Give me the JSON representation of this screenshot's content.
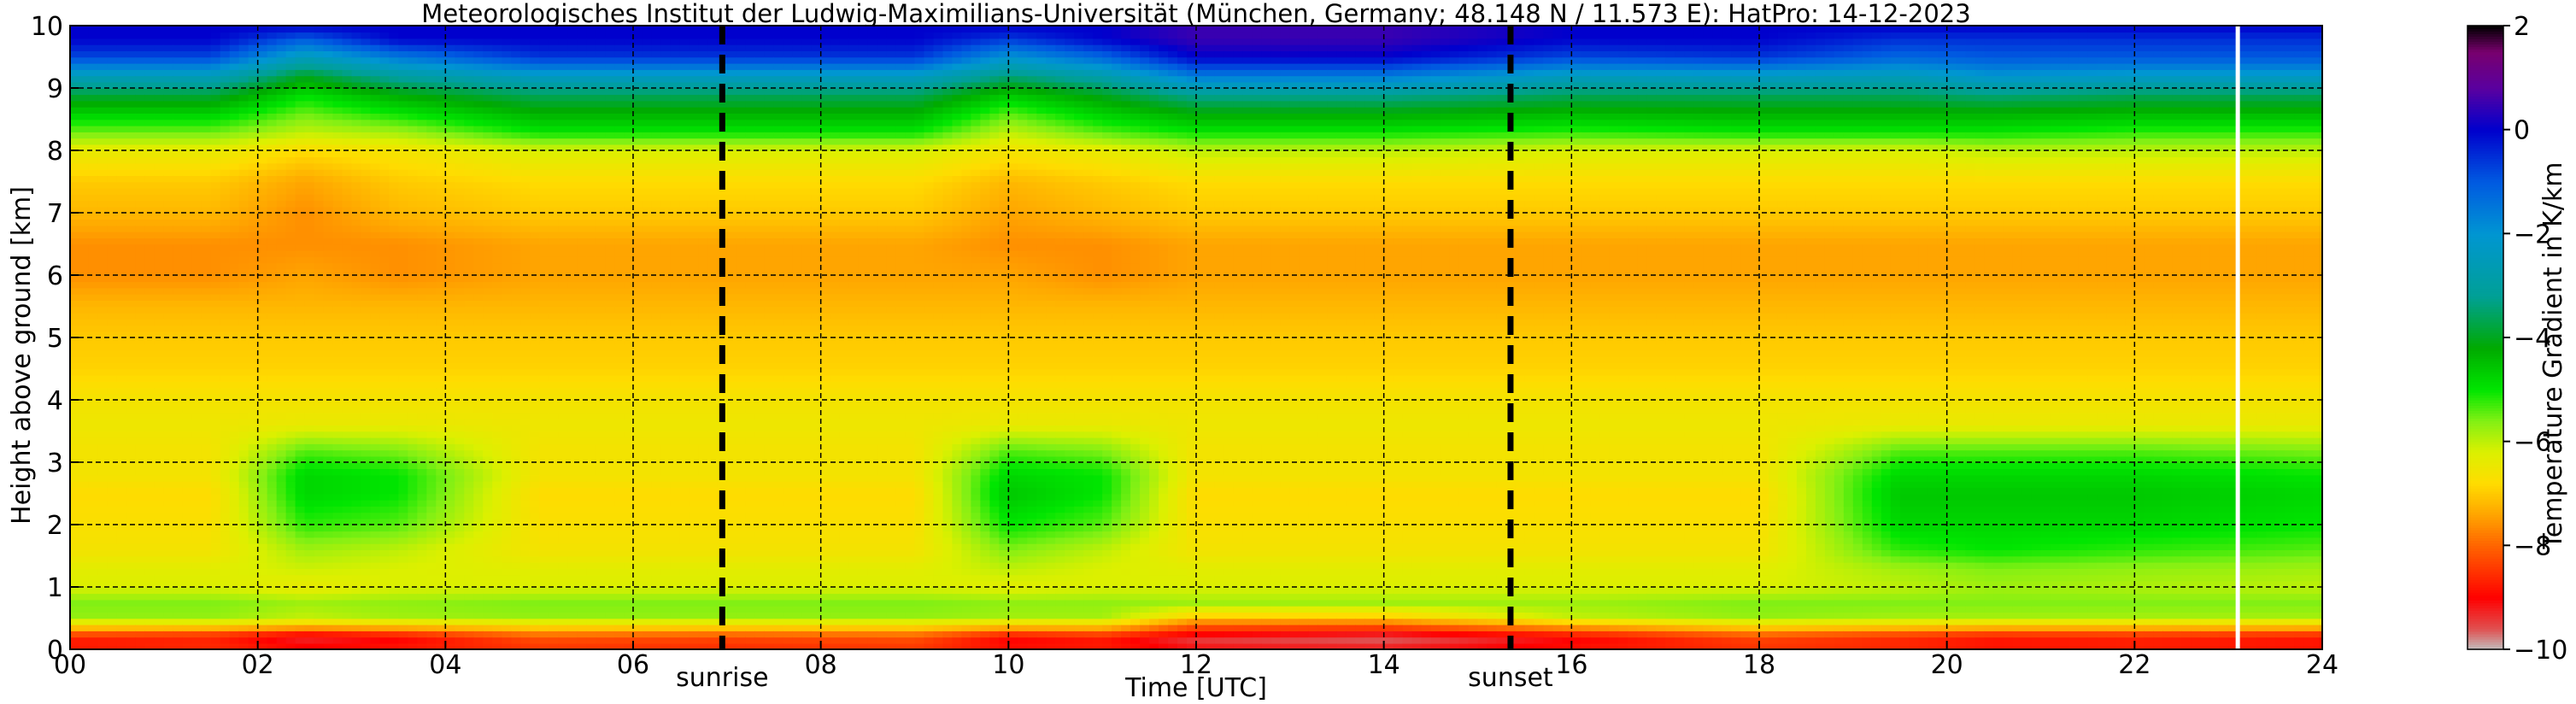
{
  "chart_data": {
    "type": "heatmap",
    "title": "Meteorologisches Institut der Ludwig-Maximilians-Universität (München, Germany; 48.148 N / 11.573 E):    HatPro: 14-12-2023",
    "xlabel": "Time [UTC]",
    "ylabel": "Height above ground [km]",
    "xlim": [
      0,
      24
    ],
    "ylim": [
      0,
      10
    ],
    "x_ticks": [
      0,
      2,
      4,
      6,
      8,
      10,
      12,
      14,
      16,
      18,
      20,
      22,
      24
    ],
    "x_tick_labels": [
      "00",
      "02",
      "04",
      "06",
      "08",
      "10",
      "12",
      "14",
      "16",
      "18",
      "20",
      "22",
      "24"
    ],
    "y_ticks": [
      0,
      1,
      2,
      3,
      4,
      5,
      6,
      7,
      8,
      9,
      10
    ],
    "y_tick_labels": [
      "0",
      "1",
      "2",
      "3",
      "4",
      "5",
      "6",
      "7",
      "8",
      "9",
      "10"
    ],
    "grid": true,
    "colorbar": {
      "label": "Temperature Gradient in K/km",
      "range": [
        -10,
        2
      ],
      "ticks": [
        -10,
        -8,
        -6,
        -4,
        -2,
        0,
        2
      ],
      "tick_labels": [
        "−10",
        "−8",
        "−6",
        "−4",
        "−2",
        "0",
        "2"
      ]
    },
    "markers": [
      {
        "label": "sunrise",
        "time": 6.95
      },
      {
        "label": "sunset",
        "time": 15.35
      }
    ],
    "gap_line_time": 23.1,
    "profile_heights_km": [
      0.0,
      0.1,
      0.25,
      0.4,
      0.55,
      0.75,
      1.0,
      1.3,
      1.6,
      2.0,
      2.5,
      2.8,
      3.2,
      3.6,
      4.0,
      4.5,
      5.0,
      5.5,
      6.0,
      6.5,
      7.0,
      7.5,
      8.0,
      8.3,
      8.6,
      8.9,
      9.2,
      9.5,
      9.8,
      10.0
    ],
    "profile_times_h": [
      0,
      1.5,
      2.5,
      3.5,
      5,
      7,
      9,
      10,
      11,
      12,
      14,
      16,
      18,
      19.5,
      20.5,
      22,
      24
    ],
    "values": [
      [
        -8.5,
        -9.0,
        -8.2,
        -6.6,
        -5.7,
        -5.6,
        -6.2,
        -6.3,
        -6.6,
        -6.7,
        -6.8,
        -6.6,
        -6.6,
        -6.5,
        -6.6,
        -6.9,
        -7.0,
        -7.2,
        -7.6,
        -7.6,
        -7.2,
        -7.0,
        -6.4,
        -5.5,
        -4.7,
        -3.8,
        -2.5,
        -0.8,
        0.0,
        0.0
      ],
      [
        -8.4,
        -8.8,
        -8.3,
        -6.6,
        -5.7,
        -5.6,
        -6.2,
        -6.3,
        -6.6,
        -6.7,
        -6.8,
        -6.6,
        -6.6,
        -6.5,
        -6.6,
        -6.9,
        -7.0,
        -7.2,
        -7.6,
        -7.6,
        -7.2,
        -7.0,
        -6.4,
        -5.5,
        -4.7,
        -3.8,
        -2.5,
        -0.8,
        0.0,
        0.0
      ],
      [
        -8.6,
        -9.4,
        -8.8,
        -6.9,
        -6.0,
        -5.8,
        -6.4,
        -6.1,
        -5.8,
        -5.2,
        -4.8,
        -4.8,
        -5.4,
        -6.4,
        -6.6,
        -6.9,
        -7.0,
        -7.2,
        -7.4,
        -7.6,
        -7.6,
        -7.4,
        -6.8,
        -6.0,
        -5.5,
        -4.9,
        -4.0,
        -2.5,
        -1.0,
        0.0
      ],
      [
        -8.5,
        -9.2,
        -8.5,
        -6.8,
        -5.8,
        -5.7,
        -6.2,
        -6.2,
        -6.0,
        -5.4,
        -5.0,
        -5.0,
        -5.6,
        -6.4,
        -6.6,
        -6.9,
        -7.0,
        -7.2,
        -7.6,
        -7.6,
        -7.2,
        -7.0,
        -6.6,
        -5.8,
        -5.0,
        -4.2,
        -3.0,
        -1.5,
        0.0,
        0.0
      ],
      [
        -8.3,
        -8.5,
        -7.8,
        -6.6,
        -5.7,
        -5.6,
        -6.2,
        -6.3,
        -6.6,
        -6.7,
        -6.8,
        -6.6,
        -6.6,
        -6.5,
        -6.6,
        -6.9,
        -7.0,
        -7.2,
        -7.4,
        -7.4,
        -7.0,
        -6.8,
        -6.2,
        -5.0,
        -4.3,
        -3.6,
        -2.3,
        -0.6,
        0.0,
        0.0
      ],
      [
        -8.4,
        -8.6,
        -7.9,
        -6.6,
        -5.7,
        -5.6,
        -6.2,
        -6.3,
        -6.6,
        -6.7,
        -6.8,
        -6.6,
        -6.6,
        -6.5,
        -6.6,
        -6.9,
        -7.0,
        -7.2,
        -7.4,
        -7.4,
        -7.0,
        -6.8,
        -6.2,
        -5.0,
        -4.3,
        -3.6,
        -2.3,
        -0.6,
        0.0,
        0.0
      ],
      [
        -8.3,
        -8.5,
        -7.8,
        -6.6,
        -5.7,
        -5.6,
        -6.2,
        -6.3,
        -6.6,
        -6.7,
        -6.8,
        -6.6,
        -6.6,
        -6.5,
        -6.6,
        -6.9,
        -7.0,
        -7.2,
        -7.4,
        -7.4,
        -7.0,
        -6.8,
        -6.2,
        -5.0,
        -4.3,
        -3.6,
        -2.3,
        -0.6,
        0.0,
        0.0
      ],
      [
        -8.6,
        -9.2,
        -8.5,
        -6.8,
        -5.8,
        -5.7,
        -6.3,
        -6.0,
        -5.6,
        -5.0,
        -4.6,
        -4.8,
        -5.4,
        -6.4,
        -6.6,
        -6.9,
        -7.0,
        -7.2,
        -7.4,
        -7.6,
        -7.4,
        -7.2,
        -6.6,
        -6.0,
        -5.4,
        -4.6,
        -3.4,
        -2.0,
        -0.6,
        0.0
      ],
      [
        -8.5,
        -9.0,
        -8.3,
        -6.8,
        -5.8,
        -5.7,
        -6.2,
        -6.2,
        -6.0,
        -5.4,
        -5.0,
        -5.0,
        -5.6,
        -6.4,
        -6.6,
        -6.9,
        -7.0,
        -7.2,
        -7.6,
        -7.6,
        -7.2,
        -7.0,
        -6.4,
        -5.4,
        -4.7,
        -4.0,
        -2.8,
        -1.2,
        0.0,
        0.0
      ],
      [
        -8.8,
        -9.6,
        -9.0,
        -8.0,
        -6.8,
        -5.8,
        -6.2,
        -6.3,
        -6.6,
        -6.7,
        -6.8,
        -6.6,
        -6.6,
        -6.5,
        -6.6,
        -6.9,
        -7.0,
        -7.2,
        -7.4,
        -7.4,
        -7.0,
        -6.8,
        -6.0,
        -5.0,
        -4.2,
        -3.2,
        -1.5,
        0.0,
        0.5,
        0.5
      ],
      [
        -8.8,
        -9.8,
        -9.2,
        -8.0,
        -6.8,
        -5.8,
        -6.2,
        -6.3,
        -6.6,
        -6.7,
        -6.8,
        -6.6,
        -6.6,
        -6.5,
        -6.6,
        -6.9,
        -7.0,
        -7.2,
        -7.4,
        -7.4,
        -7.0,
        -6.8,
        -6.0,
        -5.0,
        -4.2,
        -3.2,
        -1.5,
        0.0,
        0.5,
        0.5
      ],
      [
        -8.6,
        -9.2,
        -8.6,
        -7.2,
        -6.0,
        -5.8,
        -6.2,
        -6.3,
        -6.6,
        -6.7,
        -6.8,
        -6.6,
        -6.6,
        -6.5,
        -6.6,
        -6.9,
        -7.0,
        -7.2,
        -7.4,
        -7.4,
        -7.0,
        -6.8,
        -6.2,
        -5.2,
        -4.4,
        -3.6,
        -2.4,
        -0.8,
        0.0,
        0.0
      ],
      [
        -8.3,
        -8.6,
        -7.9,
        -6.6,
        -5.7,
        -5.6,
        -6.2,
        -6.3,
        -6.6,
        -6.7,
        -6.8,
        -6.6,
        -6.6,
        -6.5,
        -6.6,
        -6.9,
        -7.0,
        -7.2,
        -7.4,
        -7.4,
        -7.0,
        -6.8,
        -6.2,
        -5.0,
        -4.3,
        -3.6,
        -2.3,
        -0.6,
        0.0,
        0.0
      ],
      [
        -8.4,
        -8.8,
        -8.2,
        -6.7,
        -5.8,
        -5.6,
        -6.0,
        -5.8,
        -5.2,
        -4.8,
        -4.6,
        -4.8,
        -5.4,
        -6.4,
        -6.6,
        -6.9,
        -7.0,
        -7.2,
        -7.4,
        -7.4,
        -7.0,
        -6.8,
        -6.2,
        -5.0,
        -4.3,
        -3.6,
        -2.5,
        -1.2,
        -0.5,
        0.0
      ],
      [
        -8.6,
        -9.0,
        -8.4,
        -6.8,
        -5.8,
        -5.6,
        -5.8,
        -5.6,
        -5.0,
        -4.8,
        -4.6,
        -4.8,
        -5.4,
        -6.4,
        -6.6,
        -6.9,
        -7.0,
        -7.2,
        -7.4,
        -7.4,
        -7.0,
        -6.8,
        -6.0,
        -5.0,
        -4.3,
        -3.4,
        -2.0,
        -1.0,
        -0.5,
        0.0
      ],
      [
        -8.5,
        -8.9,
        -8.3,
        -6.8,
        -5.8,
        -5.6,
        -5.9,
        -5.7,
        -5.2,
        -4.8,
        -4.6,
        -4.8,
        -5.4,
        -6.4,
        -6.6,
        -6.9,
        -7.0,
        -7.2,
        -7.4,
        -7.4,
        -7.0,
        -6.8,
        -6.0,
        -5.2,
        -4.4,
        -3.6,
        -2.2,
        -1.0,
        -0.5,
        0.0
      ],
      [
        -8.6,
        -9.0,
        -8.4,
        -6.8,
        -5.8,
        -5.6,
        -6.0,
        -5.8,
        -5.4,
        -5.0,
        -4.8,
        -5.0,
        -5.6,
        -6.4,
        -6.6,
        -6.9,
        -7.0,
        -7.2,
        -7.4,
        -7.4,
        -7.0,
        -6.8,
        -6.0,
        -5.2,
        -4.4,
        -3.6,
        -2.2,
        -1.0,
        -0.5,
        0.0
      ]
    ]
  }
}
